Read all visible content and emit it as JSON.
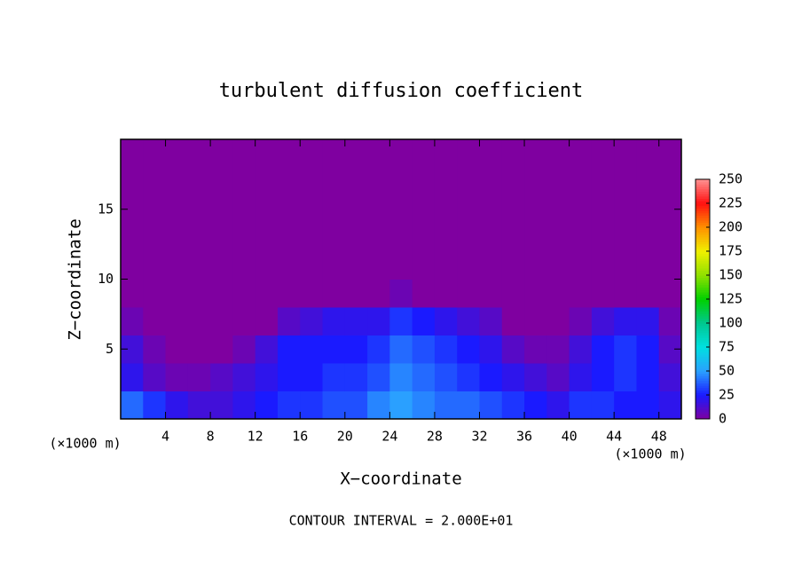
{
  "chart_data": {
    "type": "contour",
    "title": "turbulent diffusion coefficient",
    "x_label": "X−coordinate",
    "y_label": "Z−coordinate",
    "x_unit": "(×1000 m)",
    "y_unit": "(×1000 m)",
    "footnote": "CONTOUR INTERVAL = 2.000E+01",
    "xlim": [
      0,
      50
    ],
    "ylim": [
      0,
      20
    ],
    "xticks": [
      4,
      8,
      12,
      16,
      20,
      24,
      28,
      32,
      36,
      40,
      44,
      48
    ],
    "yticks": [
      5,
      10,
      15
    ],
    "xbins": [
      0,
      2,
      4,
      6,
      8,
      10,
      12,
      14,
      16,
      18,
      20,
      22,
      24,
      26,
      28,
      30,
      32,
      34,
      36,
      38,
      40,
      42,
      44,
      46,
      48,
      50
    ],
    "zbins": [
      0,
      2,
      4,
      6,
      8,
      10,
      12,
      14,
      16,
      18,
      20
    ],
    "values": [
      [
        40,
        30,
        20,
        15,
        15,
        20,
        25,
        30,
        30,
        35,
        35,
        45,
        50,
        45,
        40,
        40,
        35,
        30,
        25,
        20,
        30,
        30,
        25,
        25,
        20
      ],
      [
        20,
        10,
        5,
        5,
        10,
        15,
        20,
        25,
        25,
        30,
        30,
        35,
        45,
        40,
        35,
        30,
        25,
        20,
        15,
        10,
        20,
        25,
        30,
        25,
        15
      ],
      [
        15,
        5,
        0,
        0,
        0,
        5,
        15,
        25,
        25,
        25,
        25,
        30,
        40,
        35,
        30,
        25,
        20,
        10,
        5,
        5,
        15,
        25,
        30,
        25,
        10
      ],
      [
        5,
        0,
        0,
        0,
        0,
        0,
        0,
        10,
        15,
        20,
        20,
        20,
        30,
        25,
        20,
        15,
        10,
        0,
        0,
        0,
        5,
        15,
        20,
        20,
        5
      ],
      [
        0,
        0,
        0,
        0,
        0,
        0,
        0,
        0,
        0,
        0,
        0,
        0,
        5,
        0,
        0,
        0,
        0,
        0,
        0,
        0,
        0,
        0,
        0,
        0,
        0
      ],
      [
        0,
        0,
        0,
        0,
        0,
        0,
        0,
        0,
        0,
        0,
        0,
        0,
        0,
        0,
        0,
        0,
        0,
        0,
        0,
        0,
        0,
        0,
        0,
        0,
        0
      ],
      [
        0,
        0,
        0,
        0,
        0,
        0,
        0,
        0,
        0,
        0,
        0,
        0,
        0,
        0,
        0,
        0,
        0,
        0,
        0,
        0,
        0,
        0,
        0,
        0,
        0
      ],
      [
        0,
        0,
        0,
        0,
        0,
        0,
        0,
        0,
        0,
        0,
        0,
        0,
        0,
        0,
        0,
        0,
        0,
        0,
        0,
        0,
        0,
        0,
        0,
        0,
        0
      ],
      [
        0,
        0,
        0,
        0,
        0,
        0,
        0,
        0,
        0,
        0,
        0,
        0,
        0,
        0,
        0,
        0,
        0,
        0,
        0,
        0,
        0,
        0,
        0,
        0,
        0
      ],
      [
        0,
        0,
        0,
        0,
        0,
        0,
        0,
        0,
        0,
        0,
        0,
        0,
        0,
        0,
        0,
        0,
        0,
        0,
        0,
        0,
        0,
        0,
        0,
        0,
        0
      ]
    ],
    "clim": [
      0,
      250
    ],
    "cticks": [
      0,
      25,
      50,
      75,
      100,
      125,
      150,
      175,
      200,
      225,
      250
    ],
    "colormap": [
      "#7f00a0",
      "#1a1aff",
      "#2aa0ff",
      "#00e0e0",
      "#00c890",
      "#00d000",
      "#90e000",
      "#f0f000",
      "#ff9000",
      "#ff1010",
      "#ff9090"
    ]
  }
}
